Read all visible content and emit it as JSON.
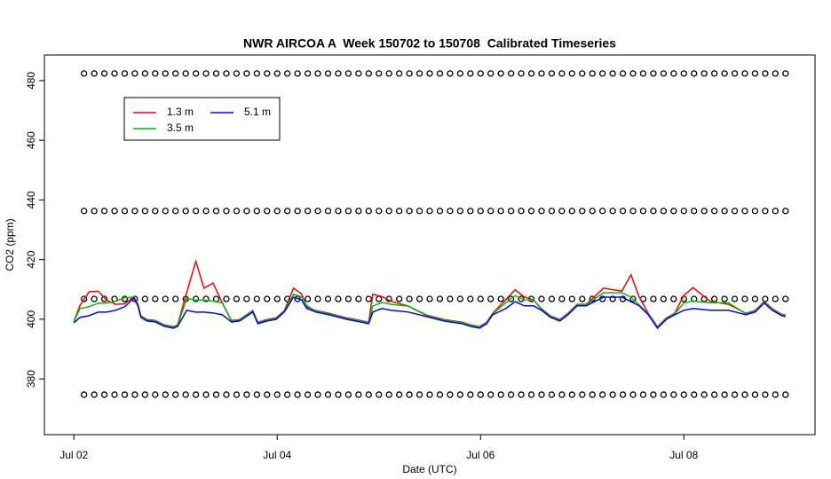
{
  "chart_data": {
    "type": "line",
    "title": "NWR AIRCOA A  Week 150702 to 150708  Calibrated Timeseries",
    "xlabel": "Date (UTC)",
    "ylabel": "CO2 (ppm)",
    "xlim": [
      -0.29,
      7.29
    ],
    "ylim": [
      361.3,
      488.6
    ],
    "xticks": [
      {
        "value": 0,
        "label": "Jul 02"
      },
      {
        "value": 2,
        "label": "Jul 04"
      },
      {
        "value": 4,
        "label": "Jul 06"
      },
      {
        "value": 6,
        "label": "Jul 08"
      }
    ],
    "yticks": [
      380,
      400,
      420,
      440,
      460,
      480
    ],
    "legend": "top-left",
    "x": [
      0,
      0.06,
      0.15,
      0.24,
      0.32,
      0.41,
      0.5,
      0.59,
      0.63,
      0.66,
      0.72,
      0.8,
      0.89,
      0.98,
      1.02,
      1.11,
      1.2,
      1.28,
      1.37,
      1.46,
      1.55,
      1.63,
      1.76,
      1.81,
      1.9,
      1.99,
      2.07,
      2.16,
      2.24,
      2.29,
      2.38,
      2.51,
      2.68,
      2.77,
      2.9,
      2.94,
      3.03,
      3.12,
      3.29,
      3.47,
      3.64,
      3.82,
      3.9,
      3.99,
      4.06,
      4.12,
      4.25,
      4.34,
      4.43,
      4.52,
      4.6,
      4.69,
      4.78,
      4.86,
      4.95,
      5.04,
      5.21,
      5.39,
      5.48,
      5.56,
      5.65,
      5.74,
      5.83,
      5.91,
      6.0,
      6.09,
      6.26,
      6.44,
      6.61,
      6.7,
      6.79,
      6.87,
      6.96,
      7.0
    ],
    "series": [
      {
        "name": "1.3 m",
        "color": "#ff0000",
        "values": [
          399.3,
          404.6,
          409.2,
          409.4,
          406.4,
          405.0,
          405.2,
          407.6,
          405.0,
          401.1,
          399.9,
          399.6,
          398.1,
          397.5,
          398.1,
          409.0,
          419.4,
          410.4,
          412.1,
          405.5,
          399.6,
          399.9,
          402.9,
          399.0,
          399.9,
          400.5,
          402.9,
          410.4,
          408.5,
          404.1,
          402.9,
          402.0,
          400.5,
          399.9,
          399.0,
          408.4,
          407.6,
          406.0,
          404.4,
          401.4,
          399.9,
          399.0,
          398.1,
          397.5,
          399.0,
          402.0,
          406.6,
          409.9,
          407.5,
          406.5,
          403.5,
          401.1,
          399.9,
          402.0,
          405.0,
          405.0,
          410.4,
          409.4,
          414.9,
          407.5,
          402.0,
          397.5,
          400.5,
          402.0,
          408.0,
          410.6,
          406.0,
          405.0,
          402.0,
          402.9,
          405.9,
          403.5,
          401.7,
          401.4
        ]
      },
      {
        "name": "3.5 m",
        "color": "#00c000",
        "values": [
          399.1,
          403.6,
          404.2,
          405.4,
          405.4,
          406.0,
          407.2,
          407.4,
          404.8,
          400.9,
          399.7,
          399.4,
          397.9,
          397.3,
          397.9,
          407.0,
          406.4,
          406.4,
          406.1,
          405.5,
          399.4,
          399.7,
          402.7,
          398.8,
          399.7,
          400.3,
          402.7,
          408.4,
          407.5,
          404.6,
          402.7,
          401.8,
          400.3,
          399.7,
          398.8,
          404.4,
          405.6,
          405.0,
          404.4,
          401.2,
          399.7,
          398.8,
          397.9,
          397.3,
          398.8,
          401.8,
          405.6,
          407.9,
          406.5,
          406.5,
          403.3,
          400.9,
          399.7,
          401.8,
          404.8,
          404.8,
          408.9,
          408.9,
          407.4,
          404.8,
          401.8,
          397.3,
          400.3,
          401.8,
          405.5,
          406.1,
          405.5,
          405.5,
          401.8,
          402.7,
          405.7,
          403.3,
          401.5,
          401.2
        ]
      },
      {
        "name": "5.1 m",
        "color": "#0000ff",
        "values": [
          398.8,
          400.6,
          401.2,
          402.4,
          402.4,
          403.0,
          404.2,
          407.1,
          404.5,
          400.6,
          399.4,
          399.1,
          397.6,
          397.0,
          397.6,
          403.0,
          402.4,
          402.4,
          402.1,
          401.5,
          399.1,
          399.4,
          402.4,
          398.5,
          399.4,
          400.0,
          402.4,
          407.4,
          406.5,
          403.6,
          402.4,
          401.5,
          400.0,
          399.4,
          398.5,
          402.4,
          403.6,
          403.0,
          402.4,
          400.9,
          399.4,
          398.5,
          397.6,
          397.0,
          398.5,
          401.5,
          403.6,
          405.9,
          404.5,
          404.5,
          403.0,
          400.6,
          399.4,
          401.5,
          404.5,
          404.5,
          407.4,
          407.4,
          405.9,
          404.5,
          401.5,
          397.0,
          400.0,
          401.5,
          403.0,
          403.6,
          403.0,
          403.0,
          401.5,
          402.4,
          405.4,
          403.0,
          401.2,
          400.9
        ]
      }
    ],
    "calibration": {
      "x": [
        0.1,
        0.2,
        0.3,
        0.4,
        0.5,
        0.6,
        0.7,
        0.8,
        0.9,
        1.0,
        1.1,
        1.2,
        1.3,
        1.4,
        1.5,
        1.6,
        1.7,
        1.8,
        1.9,
        2.0,
        2.1,
        2.2,
        2.3,
        2.4,
        2.5,
        2.6,
        2.7,
        2.8,
        2.9,
        3.0,
        3.1,
        3.2,
        3.3,
        3.4,
        3.5,
        3.6,
        3.7,
        3.8,
        3.9,
        4.0,
        4.1,
        4.2,
        4.3,
        4.4,
        4.5,
        4.6,
        4.7,
        4.8,
        4.9,
        5.0,
        5.1,
        5.2,
        5.3,
        5.4,
        5.5,
        5.6,
        5.7,
        5.8,
        5.9,
        6.0,
        6.1,
        6.2,
        6.3,
        6.4,
        6.5,
        6.6,
        6.7,
        6.8,
        6.9,
        7.0
      ],
      "levels": [
        482.4,
        436.3,
        406.8,
        374.7
      ]
    }
  }
}
